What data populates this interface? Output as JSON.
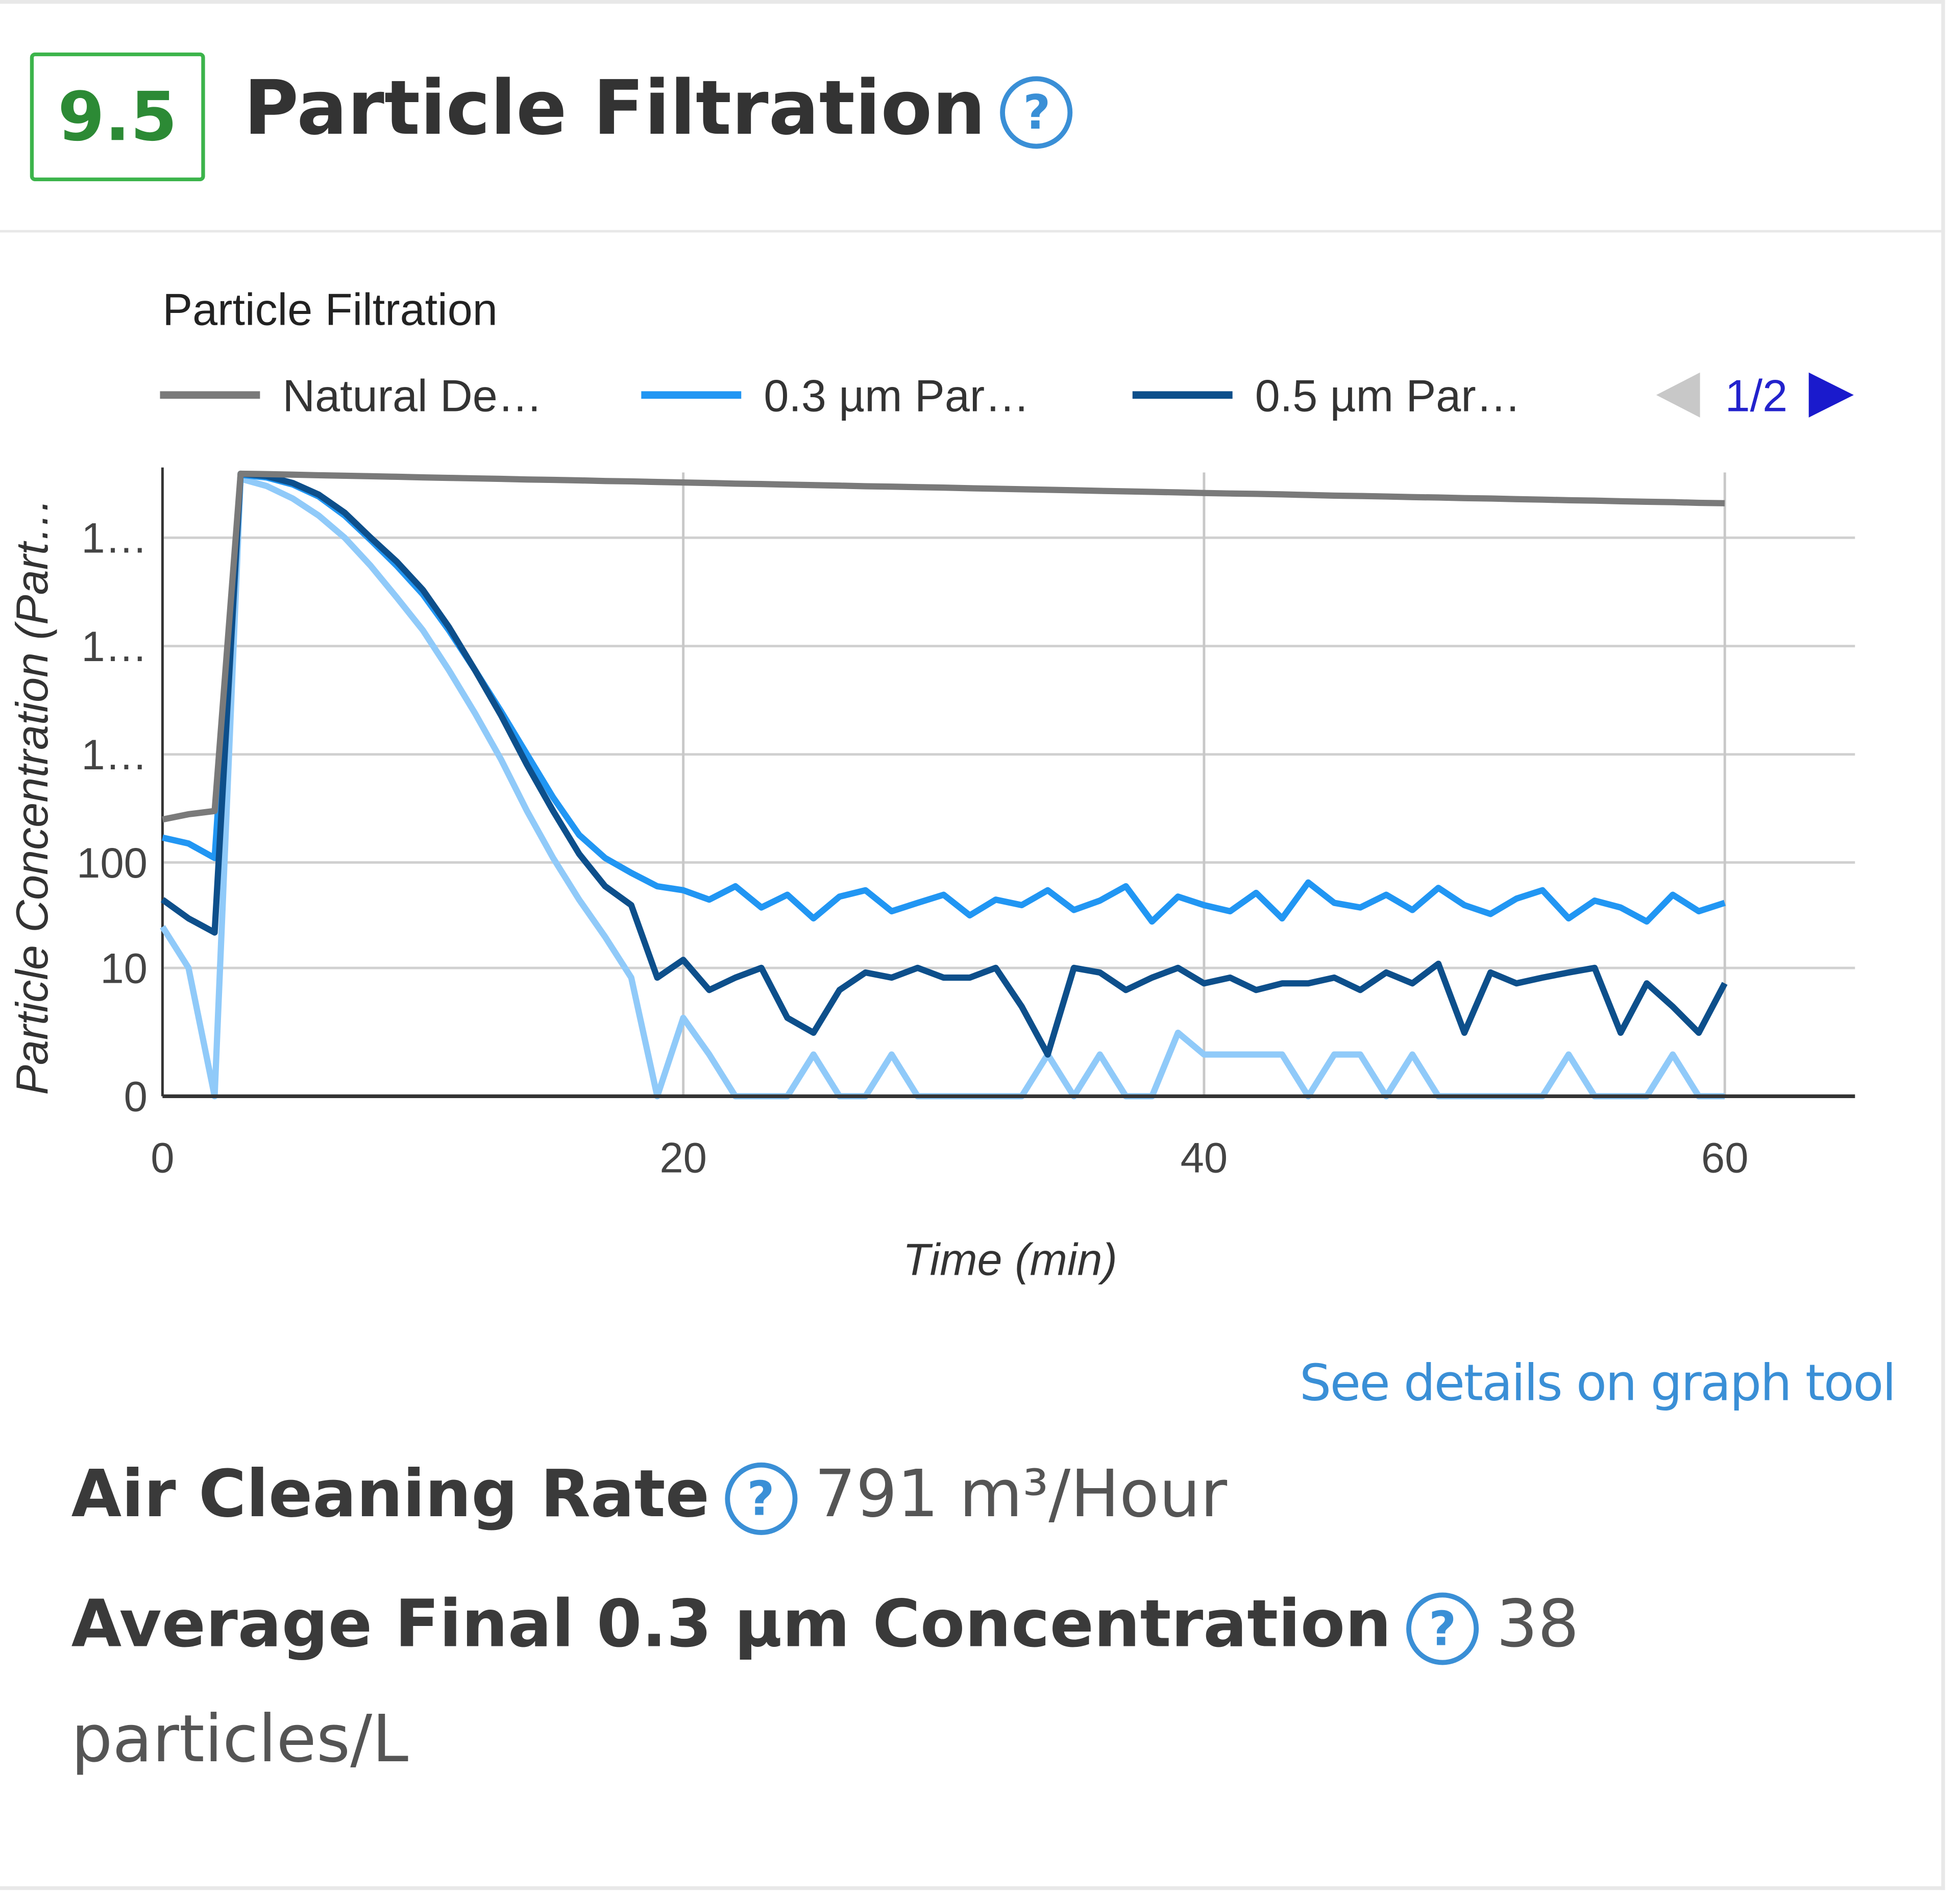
{
  "header": {
    "score": "9.5",
    "title": "Particle Filtration"
  },
  "help": "?",
  "chart_data": {
    "type": "line",
    "title": "Particle Filtration",
    "xlabel": "Time (min)",
    "ylabel": "Particle Concentration (Part…",
    "legend_page": "1/2",
    "y_scale": "symlog",
    "grid": true,
    "x": [
      0,
      1,
      2,
      3,
      4,
      5,
      6,
      7,
      8,
      9,
      10,
      11,
      12,
      13,
      14,
      15,
      16,
      17,
      18,
      19,
      20,
      21,
      22,
      23,
      24,
      25,
      26,
      27,
      28,
      29,
      30,
      31,
      32,
      33,
      34,
      35,
      36,
      37,
      38,
      39,
      40,
      41,
      42,
      43,
      44,
      45,
      46,
      47,
      48,
      49,
      50,
      51,
      52,
      53,
      54,
      55,
      56,
      57,
      58,
      59,
      60
    ],
    "xlim": [
      0,
      65
    ],
    "xticks": [
      0,
      20,
      40,
      60
    ],
    "ylim": [
      0,
      400000
    ],
    "yticks": [
      0,
      10,
      100,
      {
        "value": 1000,
        "label": "1…"
      },
      {
        "value": 10000,
        "label": "1…"
      },
      {
        "value": 100000,
        "label": "1…"
      }
    ],
    "series": [
      {
        "name": "Natural De…",
        "color": "#7a7a7a",
        "values": [
          250,
          280,
          300,
          390000,
          386000,
          382000,
          377000,
          373000,
          369000,
          365000,
          361000,
          357000,
          353000,
          349000,
          345000,
          342000,
          338000,
          334000,
          331000,
          327000,
          323000,
          320000,
          316000,
          313000,
          309000,
          306000,
          303000,
          299000,
          296000,
          293000,
          290000,
          286000,
          283000,
          280000,
          277000,
          274000,
          271000,
          268000,
          265000,
          262000,
          259000,
          256000,
          254000,
          251000,
          248000,
          245000,
          243000,
          240000,
          237000,
          235000,
          232000,
          230000,
          227000,
          225000,
          222000,
          220000,
          217000,
          215000,
          213000,
          210000,
          208000
        ]
      },
      {
        "name": "0.3 µm Par…",
        "color": "#2196f3",
        "values": [
          170,
          150,
          110,
          380000,
          360000,
          310000,
          240000,
          160000,
          95000,
          55000,
          30000,
          14000,
          6000,
          2500,
          1000,
          400,
          180,
          110,
          80,
          60,
          55,
          45,
          60,
          38,
          50,
          30,
          48,
          55,
          35,
          42,
          50,
          32,
          45,
          40,
          55,
          36,
          44,
          60,
          28,
          48,
          40,
          35,
          52,
          30,
          65,
          42,
          38,
          50,
          36,
          58,
          40,
          33,
          46,
          55,
          30,
          44,
          38,
          28,
          50,
          35,
          42
        ]
      },
      {
        "name": "0.5 µm Par…",
        "color": "#0d4f8b",
        "values": [
          45,
          30,
          22,
          390000,
          370000,
          320000,
          250000,
          170000,
          100000,
          60000,
          33000,
          15000,
          6000,
          2300,
          800,
          300,
          120,
          60,
          40,
          8,
          12,
          6,
          8,
          10,
          3,
          2,
          6,
          9,
          8,
          10,
          8,
          8,
          10,
          4,
          1,
          10,
          9,
          6,
          8,
          10,
          7,
          8,
          6,
          7,
          7,
          8,
          6,
          9,
          7,
          11,
          2,
          9,
          7,
          8,
          9,
          10,
          2,
          7,
          4,
          2,
          7
        ]
      },
      {
        "color": "#90caf9",
        "values": [
          25,
          10,
          0,
          350000,
          300000,
          230000,
          160000,
          100000,
          55000,
          28000,
          14000,
          6000,
          2400,
          900,
          300,
          110,
          45,
          20,
          8,
          0,
          3,
          1,
          0,
          0,
          0,
          1,
          0,
          0,
          1,
          0,
          0,
          0,
          0,
          0,
          1,
          0,
          1,
          0,
          0,
          2,
          1,
          1,
          1,
          1,
          0,
          1,
          1,
          0,
          1,
          0,
          0,
          0,
          0,
          0,
          1,
          0,
          0,
          0,
          1,
          0,
          0
        ]
      }
    ]
  },
  "link": "See details on graph tool",
  "metrics": [
    {
      "label": "Air Cleaning Rate",
      "value": "791 m³/Hour"
    },
    {
      "label": "Average Final 0.3 µm Concentration",
      "value": "38 particles/L"
    }
  ]
}
